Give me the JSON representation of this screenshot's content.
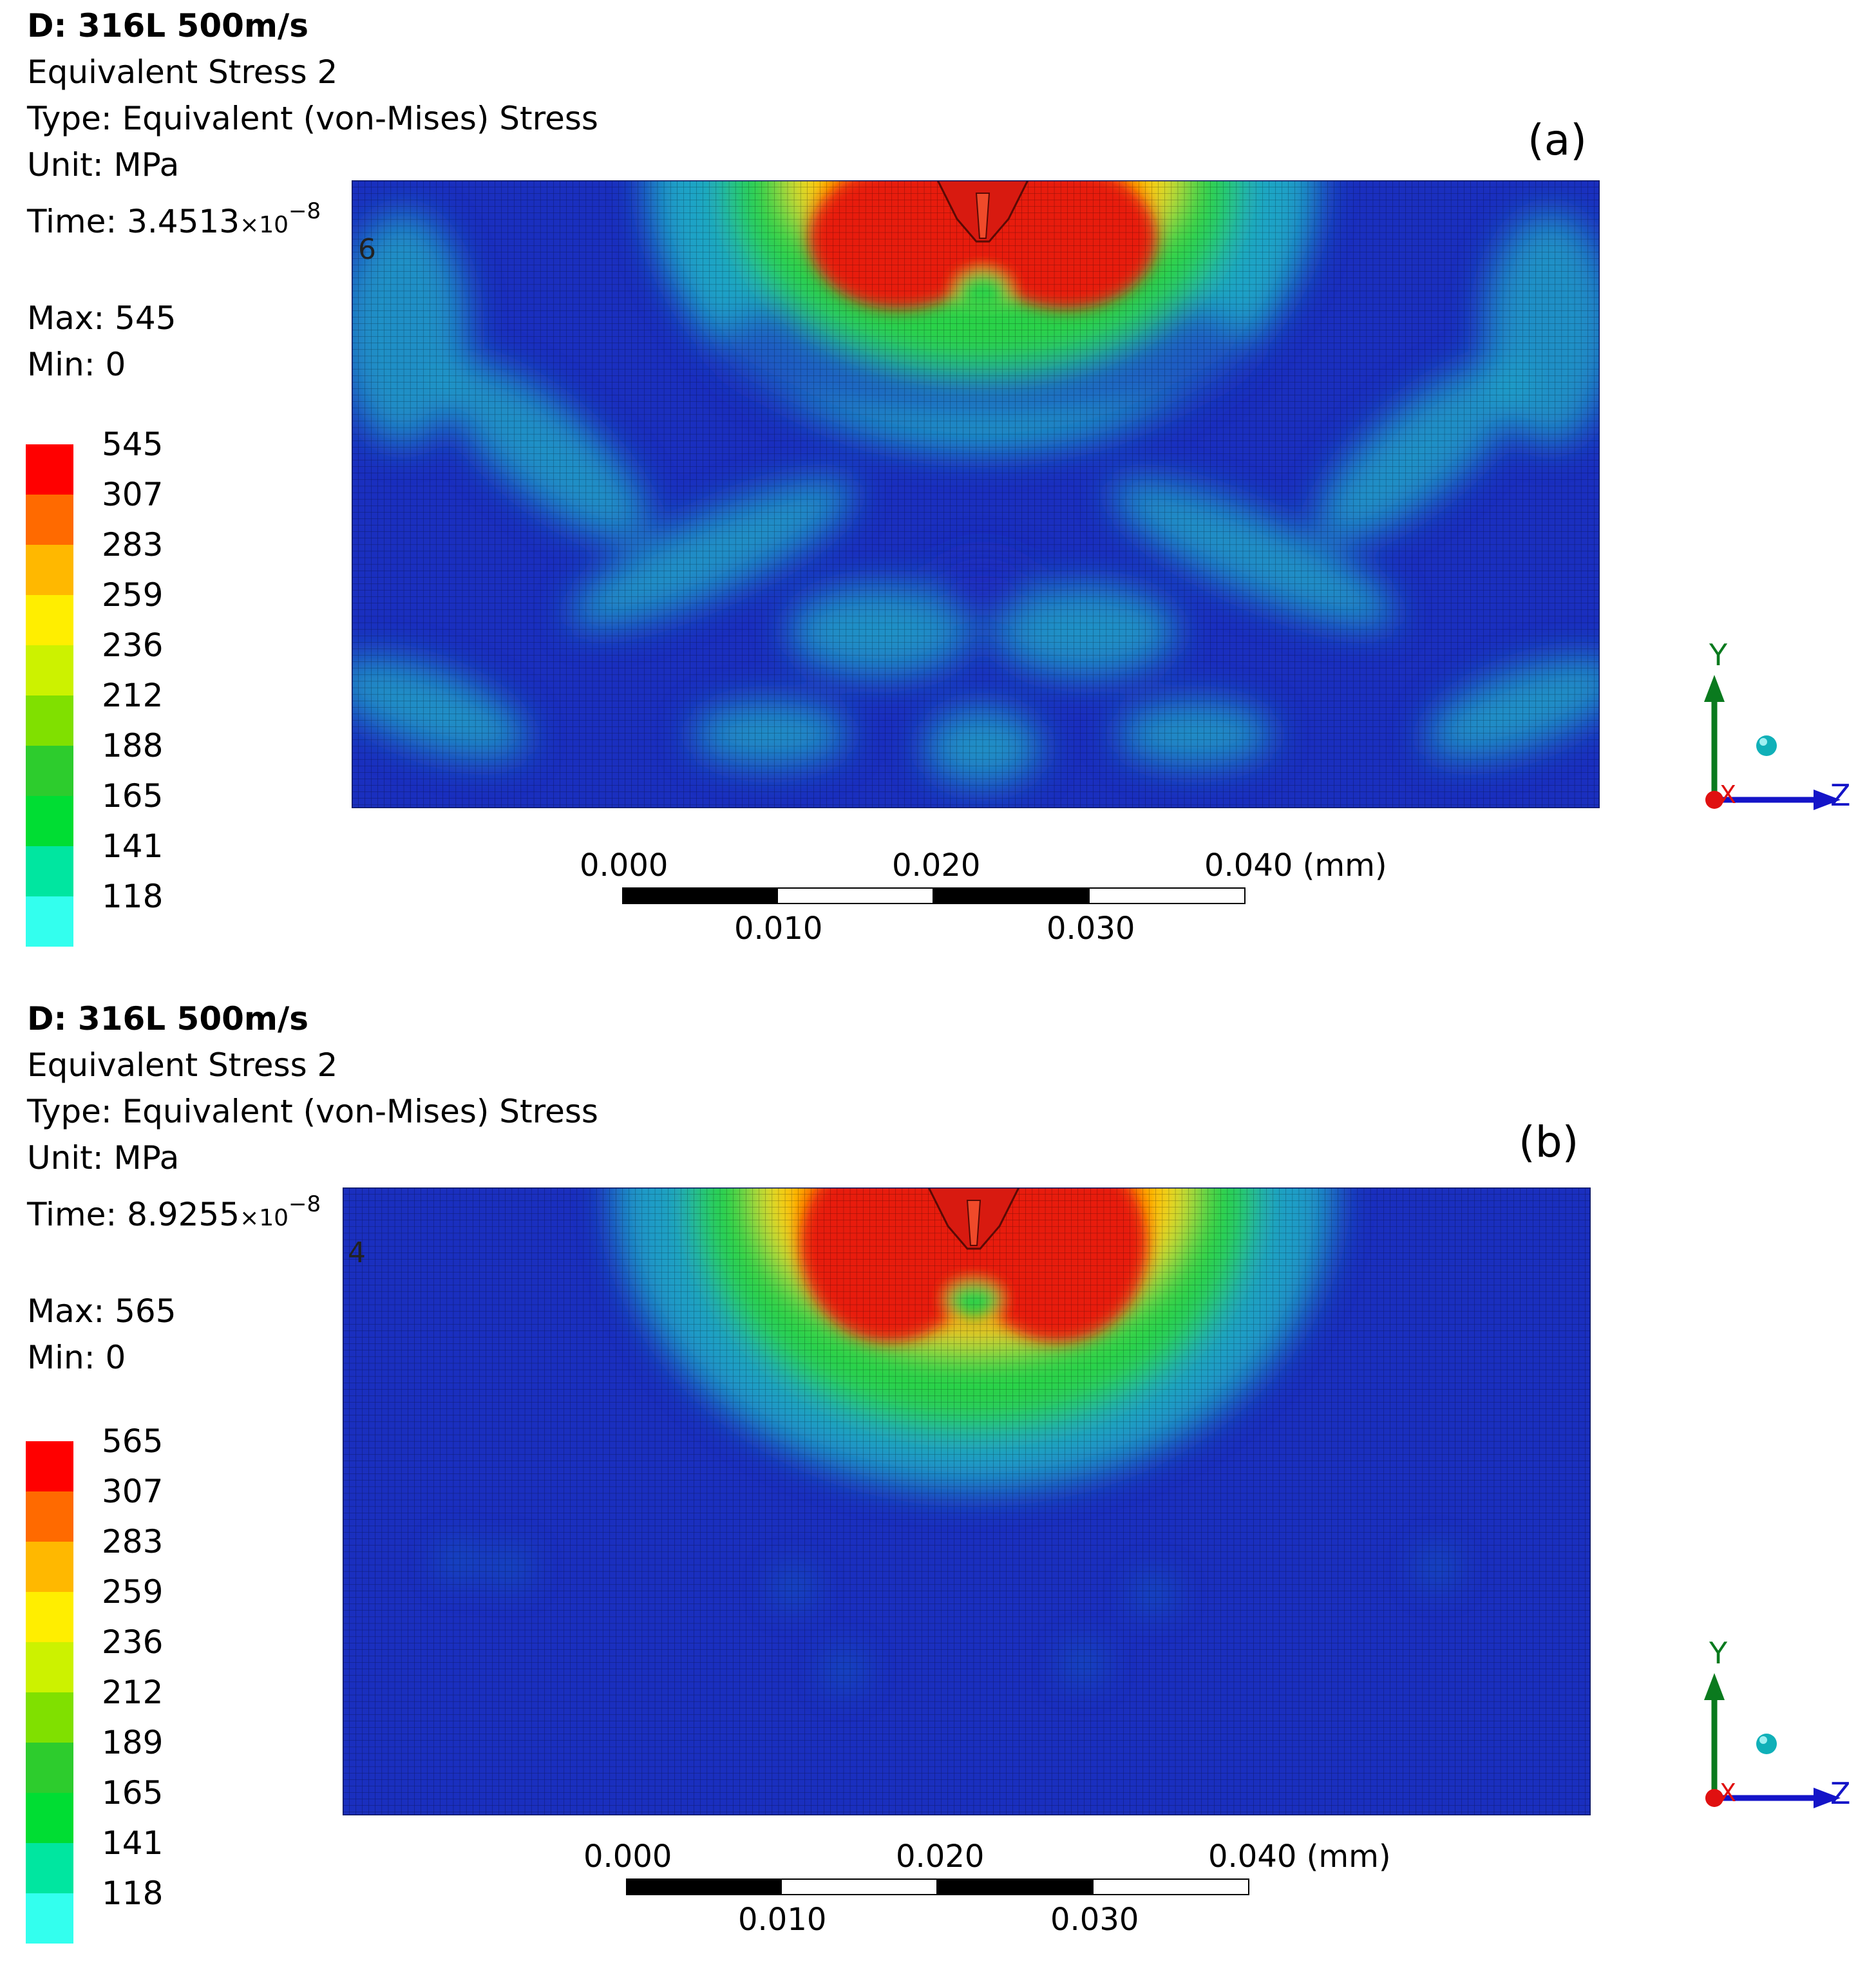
{
  "panels": [
    {
      "id": "a",
      "label": "(a)",
      "title": "D: 316L 500m/s",
      "result": "Equivalent Stress 2",
      "type": "Type: Equivalent (von-Mises) Stress",
      "unit": "Unit: MPa",
      "time_prefix": "Time: 3.4513",
      "time_mult": "×10",
      "time_exp": "−8",
      "max": "Max: 545",
      "min": "Min: 0",
      "node_id": "6",
      "legend_labels": [
        "545",
        "307",
        "283",
        "259",
        "236",
        "212",
        "188",
        "165",
        "141",
        "118"
      ]
    },
    {
      "id": "b",
      "label": "(b)",
      "title": "D: 316L 500m/s",
      "result": "Equivalent Stress 2",
      "type": "Type: Equivalent (von-Mises) Stress",
      "unit": "Unit: MPa",
      "time_prefix": "Time: 8.9255",
      "time_mult": "×10",
      "time_exp": "−8",
      "max": "Max: 565",
      "min": "Min: 0",
      "node_id": "4",
      "legend_labels": [
        "565",
        "307",
        "283",
        "259",
        "236",
        "212",
        "189",
        "165",
        "141",
        "118"
      ]
    }
  ],
  "legend_colors": [
    "#ff0000",
    "#ff6a00",
    "#ffb800",
    "#ffee00",
    "#ccf200",
    "#80e000",
    "#2dcc2d",
    "#00dd33",
    "#00e6a0",
    "#33ffee"
  ],
  "field_colors": {
    "background": "#1a2fbf",
    "cyan": "#1fb0c8",
    "green": "#2ad24a",
    "yellow": "#ffe100",
    "orange": "#ff7a00",
    "red": "#e81c10"
  },
  "scale_bar": {
    "top_labels": [
      "0.000",
      "0.020",
      "0.040 (mm)"
    ],
    "bottom_labels": [
      "0.010",
      "0.030"
    ]
  },
  "triad": {
    "y": "Y",
    "z": "Z",
    "x": "X"
  }
}
